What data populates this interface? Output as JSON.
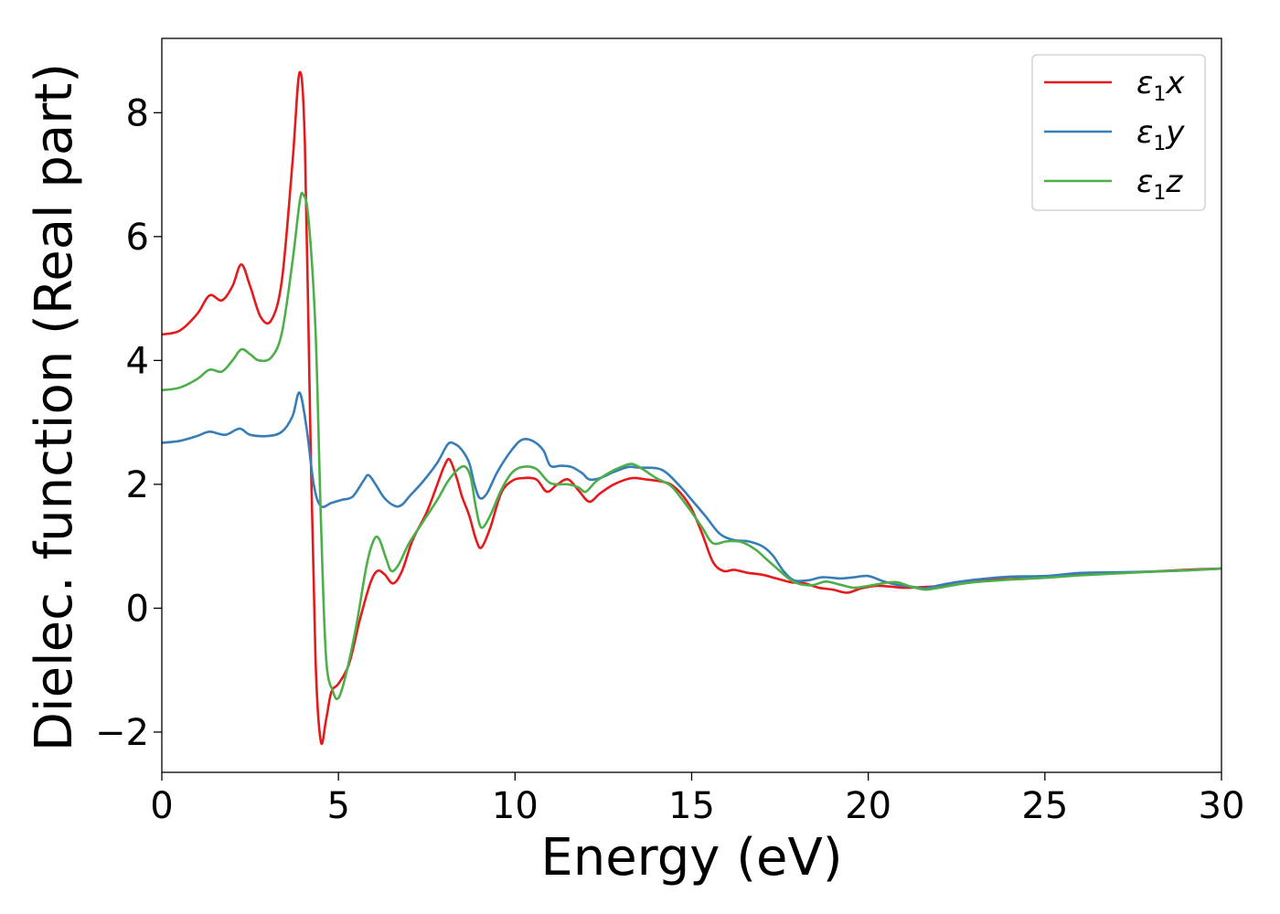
{
  "chart_data": {
    "type": "line",
    "title": "",
    "xlabel": "Energy (eV)",
    "ylabel": "Dielec. function (Real part)",
    "xlim": [
      0,
      30
    ],
    "ylim": [
      -2.65,
      9.2
    ],
    "xticks": [
      0,
      5,
      10,
      15,
      20,
      25,
      30
    ],
    "xtick_labels": [
      "0",
      "5",
      "10",
      "15",
      "20",
      "25",
      "30"
    ],
    "yticks": [
      -2,
      0,
      2,
      4,
      6,
      8
    ],
    "ytick_labels": [
      "−2",
      "0",
      "2",
      "4",
      "6",
      "8"
    ],
    "grid": false,
    "legend_position": "top-right",
    "series": [
      {
        "name": "ε1x",
        "legend_base": "ε",
        "legend_sub": "1",
        "legend_var": "x",
        "color": "#e41a1c",
        "points": [
          [
            0,
            4.42
          ],
          [
            0.5,
            4.48
          ],
          [
            1.0,
            4.75
          ],
          [
            1.35,
            5.05
          ],
          [
            1.7,
            4.97
          ],
          [
            2.0,
            5.2
          ],
          [
            2.25,
            5.55
          ],
          [
            2.5,
            5.2
          ],
          [
            2.8,
            4.7
          ],
          [
            3.1,
            4.65
          ],
          [
            3.4,
            5.3
          ],
          [
            3.7,
            7.2
          ],
          [
            3.9,
            8.65
          ],
          [
            4.05,
            7.5
          ],
          [
            4.2,
            3.0
          ],
          [
            4.35,
            -0.8
          ],
          [
            4.5,
            -2.15
          ],
          [
            4.65,
            -1.8
          ],
          [
            4.8,
            -1.35
          ],
          [
            5.0,
            -1.22
          ],
          [
            5.3,
            -0.9
          ],
          [
            5.6,
            -0.2
          ],
          [
            5.9,
            0.4
          ],
          [
            6.1,
            0.6
          ],
          [
            6.3,
            0.55
          ],
          [
            6.55,
            0.4
          ],
          [
            6.8,
            0.6
          ],
          [
            7.1,
            1.1
          ],
          [
            7.5,
            1.55
          ],
          [
            7.8,
            2.0
          ],
          [
            8.0,
            2.3
          ],
          [
            8.15,
            2.4
          ],
          [
            8.35,
            2.1
          ],
          [
            8.5,
            1.8
          ],
          [
            8.7,
            1.5
          ],
          [
            8.9,
            1.1
          ],
          [
            9.05,
            0.98
          ],
          [
            9.3,
            1.3
          ],
          [
            9.6,
            1.85
          ],
          [
            9.9,
            2.05
          ],
          [
            10.2,
            2.1
          ],
          [
            10.6,
            2.08
          ],
          [
            10.9,
            1.88
          ],
          [
            11.2,
            2.0
          ],
          [
            11.5,
            2.08
          ],
          [
            11.8,
            1.9
          ],
          [
            12.1,
            1.72
          ],
          [
            12.4,
            1.85
          ],
          [
            12.8,
            2.0
          ],
          [
            13.3,
            2.1
          ],
          [
            13.7,
            2.08
          ],
          [
            14.1,
            2.05
          ],
          [
            14.4,
            2.0
          ],
          [
            14.7,
            1.85
          ],
          [
            15.0,
            1.6
          ],
          [
            15.3,
            1.2
          ],
          [
            15.6,
            0.75
          ],
          [
            15.9,
            0.6
          ],
          [
            16.2,
            0.62
          ],
          [
            16.6,
            0.57
          ],
          [
            17.0,
            0.54
          ],
          [
            17.4,
            0.48
          ],
          [
            17.8,
            0.42
          ],
          [
            18.2,
            0.4
          ],
          [
            18.6,
            0.33
          ],
          [
            19.0,
            0.3
          ],
          [
            19.4,
            0.25
          ],
          [
            19.8,
            0.32
          ],
          [
            20.2,
            0.36
          ],
          [
            20.6,
            0.35
          ],
          [
            21.0,
            0.33
          ],
          [
            21.5,
            0.34
          ],
          [
            22.0,
            0.36
          ],
          [
            22.5,
            0.42
          ],
          [
            23.0,
            0.45
          ],
          [
            24.0,
            0.47
          ],
          [
            25.0,
            0.5
          ],
          [
            26.0,
            0.55
          ],
          [
            27.0,
            0.57
          ],
          [
            28.0,
            0.59
          ],
          [
            29.0,
            0.62
          ],
          [
            30.0,
            0.64
          ]
        ]
      },
      {
        "name": "ε1y",
        "legend_base": "ε",
        "legend_sub": "1",
        "legend_var": "y",
        "color": "#377eb8",
        "points": [
          [
            0,
            2.67
          ],
          [
            0.5,
            2.7
          ],
          [
            1.0,
            2.78
          ],
          [
            1.35,
            2.85
          ],
          [
            1.8,
            2.8
          ],
          [
            2.2,
            2.9
          ],
          [
            2.5,
            2.8
          ],
          [
            3.0,
            2.78
          ],
          [
            3.4,
            2.85
          ],
          [
            3.7,
            3.1
          ],
          [
            3.9,
            3.48
          ],
          [
            4.1,
            2.9
          ],
          [
            4.3,
            2.0
          ],
          [
            4.5,
            1.65
          ],
          [
            4.8,
            1.7
          ],
          [
            5.1,
            1.75
          ],
          [
            5.4,
            1.8
          ],
          [
            5.7,
            2.05
          ],
          [
            5.85,
            2.15
          ],
          [
            6.05,
            2.0
          ],
          [
            6.3,
            1.78
          ],
          [
            6.6,
            1.65
          ],
          [
            6.8,
            1.67
          ],
          [
            7.0,
            1.8
          ],
          [
            7.4,
            2.05
          ],
          [
            7.8,
            2.35
          ],
          [
            8.1,
            2.65
          ],
          [
            8.3,
            2.65
          ],
          [
            8.5,
            2.55
          ],
          [
            8.7,
            2.35
          ],
          [
            8.85,
            2.0
          ],
          [
            9.0,
            1.78
          ],
          [
            9.2,
            1.85
          ],
          [
            9.5,
            2.2
          ],
          [
            9.9,
            2.55
          ],
          [
            10.2,
            2.72
          ],
          [
            10.5,
            2.7
          ],
          [
            10.8,
            2.55
          ],
          [
            11.0,
            2.3
          ],
          [
            11.3,
            2.3
          ],
          [
            11.6,
            2.28
          ],
          [
            11.9,
            2.18
          ],
          [
            12.1,
            2.08
          ],
          [
            12.4,
            2.1
          ],
          [
            12.8,
            2.2
          ],
          [
            13.2,
            2.28
          ],
          [
            13.5,
            2.27
          ],
          [
            14.0,
            2.26
          ],
          [
            14.3,
            2.18
          ],
          [
            14.7,
            1.95
          ],
          [
            15.0,
            1.75
          ],
          [
            15.4,
            1.48
          ],
          [
            15.8,
            1.2
          ],
          [
            16.2,
            1.1
          ],
          [
            16.6,
            1.08
          ],
          [
            17.0,
            1.0
          ],
          [
            17.3,
            0.85
          ],
          [
            17.6,
            0.6
          ],
          [
            17.9,
            0.45
          ],
          [
            18.3,
            0.45
          ],
          [
            18.7,
            0.5
          ],
          [
            19.2,
            0.48
          ],
          [
            19.6,
            0.5
          ],
          [
            20.0,
            0.52
          ],
          [
            20.4,
            0.44
          ],
          [
            20.8,
            0.38
          ],
          [
            21.2,
            0.35
          ],
          [
            21.6,
            0.32
          ],
          [
            22.0,
            0.37
          ],
          [
            22.5,
            0.42
          ],
          [
            23.0,
            0.46
          ],
          [
            24.0,
            0.51
          ],
          [
            25.0,
            0.52
          ],
          [
            26.0,
            0.57
          ],
          [
            27.0,
            0.58
          ],
          [
            28.0,
            0.59
          ],
          [
            29.0,
            0.61
          ],
          [
            30.0,
            0.64
          ]
        ]
      },
      {
        "name": "ε1z",
        "legend_base": "ε",
        "legend_sub": "1",
        "legend_var": "z",
        "color": "#4daf4a",
        "points": [
          [
            0,
            3.52
          ],
          [
            0.5,
            3.56
          ],
          [
            1.0,
            3.7
          ],
          [
            1.35,
            3.85
          ],
          [
            1.7,
            3.82
          ],
          [
            2.0,
            4.0
          ],
          [
            2.25,
            4.18
          ],
          [
            2.5,
            4.1
          ],
          [
            2.75,
            4.0
          ],
          [
            3.1,
            4.05
          ],
          [
            3.4,
            4.45
          ],
          [
            3.7,
            5.6
          ],
          [
            3.9,
            6.55
          ],
          [
            4.0,
            6.68
          ],
          [
            4.15,
            6.3
          ],
          [
            4.35,
            4.5
          ],
          [
            4.5,
            1.5
          ],
          [
            4.65,
            -0.8
          ],
          [
            4.85,
            -1.35
          ],
          [
            5.0,
            -1.45
          ],
          [
            5.2,
            -1.1
          ],
          [
            5.5,
            -0.3
          ],
          [
            5.8,
            0.7
          ],
          [
            6.0,
            1.1
          ],
          [
            6.15,
            1.12
          ],
          [
            6.35,
            0.8
          ],
          [
            6.5,
            0.6
          ],
          [
            6.7,
            0.7
          ],
          [
            7.0,
            1.05
          ],
          [
            7.4,
            1.4
          ],
          [
            7.8,
            1.75
          ],
          [
            8.1,
            2.05
          ],
          [
            8.4,
            2.25
          ],
          [
            8.6,
            2.28
          ],
          [
            8.75,
            2.1
          ],
          [
            8.9,
            1.6
          ],
          [
            9.05,
            1.3
          ],
          [
            9.3,
            1.5
          ],
          [
            9.6,
            1.9
          ],
          [
            9.9,
            2.18
          ],
          [
            10.2,
            2.28
          ],
          [
            10.6,
            2.25
          ],
          [
            11.0,
            2.02
          ],
          [
            11.5,
            2.0
          ],
          [
            11.8,
            1.95
          ],
          [
            12.0,
            1.88
          ],
          [
            12.3,
            2.05
          ],
          [
            12.7,
            2.2
          ],
          [
            13.0,
            2.28
          ],
          [
            13.3,
            2.33
          ],
          [
            13.6,
            2.25
          ],
          [
            14.0,
            2.1
          ],
          [
            14.4,
            1.98
          ],
          [
            14.7,
            1.78
          ],
          [
            15.0,
            1.55
          ],
          [
            15.3,
            1.3
          ],
          [
            15.6,
            1.05
          ],
          [
            16.0,
            1.08
          ],
          [
            16.4,
            1.07
          ],
          [
            16.8,
            0.95
          ],
          [
            17.1,
            0.8
          ],
          [
            17.4,
            0.65
          ],
          [
            17.7,
            0.5
          ],
          [
            18.0,
            0.4
          ],
          [
            18.4,
            0.37
          ],
          [
            18.8,
            0.43
          ],
          [
            19.2,
            0.38
          ],
          [
            19.6,
            0.33
          ],
          [
            20.0,
            0.36
          ],
          [
            20.4,
            0.4
          ],
          [
            20.8,
            0.42
          ],
          [
            21.2,
            0.35
          ],
          [
            21.6,
            0.3
          ],
          [
            22.0,
            0.33
          ],
          [
            22.5,
            0.38
          ],
          [
            23.0,
            0.42
          ],
          [
            24.0,
            0.46
          ],
          [
            25.0,
            0.49
          ],
          [
            26.0,
            0.53
          ],
          [
            27.0,
            0.56
          ],
          [
            28.0,
            0.59
          ],
          [
            29.0,
            0.61
          ],
          [
            30.0,
            0.64
          ]
        ]
      }
    ]
  }
}
